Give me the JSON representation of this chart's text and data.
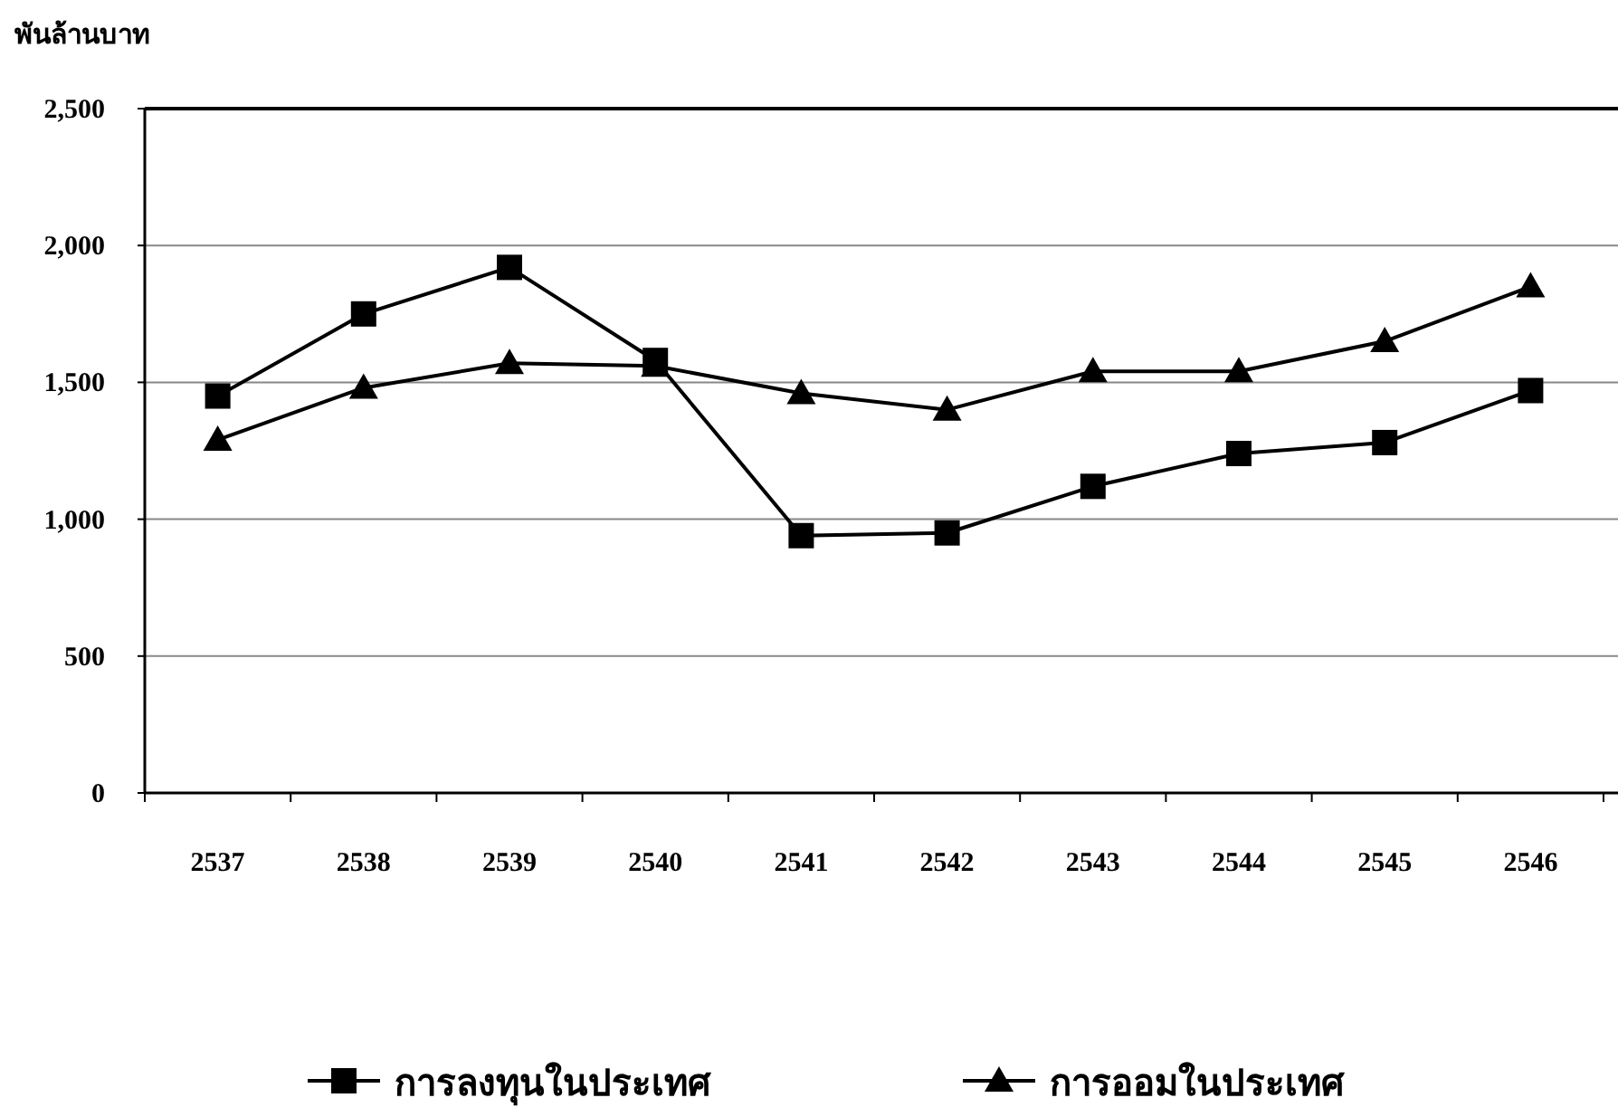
{
  "chart_data": {
    "type": "line",
    "ylabel": "พันล้านบาท",
    "categories": [
      "2537",
      "2538",
      "2539",
      "2540",
      "2541",
      "2542",
      "2543",
      "2544",
      "2545",
      "2546"
    ],
    "series": [
      {
        "name": "การลงทุนในประเทศ",
        "color": "#000000",
        "marker": "square",
        "values": [
          1450,
          1750,
          1920,
          1580,
          940,
          950,
          1120,
          1240,
          1280,
          1470
        ]
      },
      {
        "name": "การออมในประเทศ",
        "color": "#000000",
        "marker": "triangle",
        "values": [
          1290,
          1480,
          1570,
          1560,
          1460,
          1400,
          1540,
          1540,
          1650,
          1850
        ]
      }
    ],
    "ylim": [
      0,
      2500
    ],
    "yticks": [
      {
        "value": 0,
        "label": "0"
      },
      {
        "value": 500,
        "label": "500"
      },
      {
        "value": 1000,
        "label": "1,000"
      },
      {
        "value": 1500,
        "label": "1,500"
      },
      {
        "value": 2000,
        "label": "2,000"
      },
      {
        "value": 2500,
        "label": "2,500"
      }
    ],
    "grid": "y",
    "legend": "bottom",
    "line_style": "solid"
  }
}
